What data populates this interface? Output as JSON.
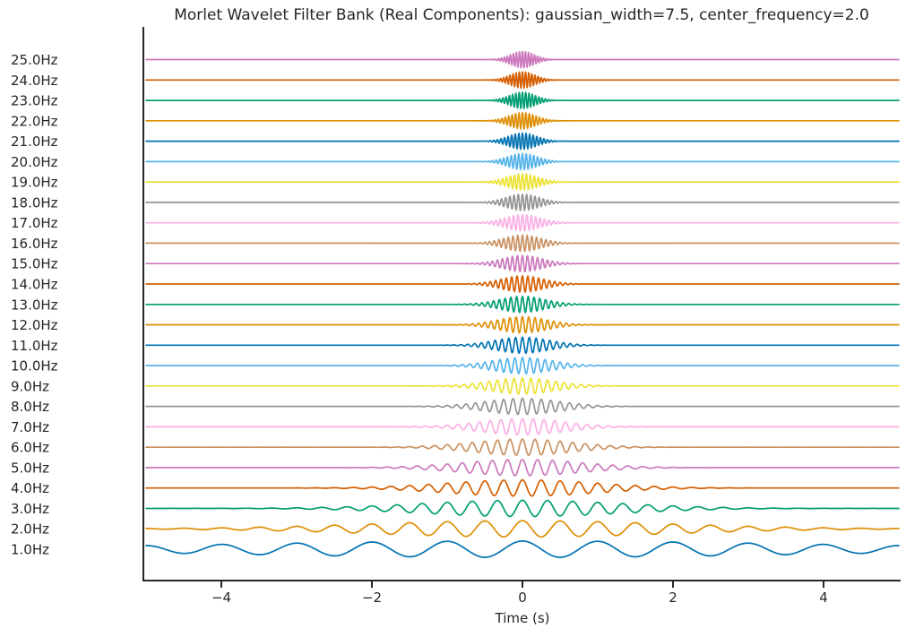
{
  "chart_data": {
    "type": "line",
    "title": "Morlet Wavelet Filter Bank (Real Components): gaussian_width=7.5, center_frequency=2.0",
    "xlabel": "Time (s)",
    "x_range": [
      -5,
      5
    ],
    "x_ticks": [
      {
        "value": -4,
        "label": "−4"
      },
      {
        "value": -2,
        "label": "−2"
      },
      {
        "value": 0,
        "label": "0"
      },
      {
        "value": 2,
        "label": "2"
      },
      {
        "value": 4,
        "label": "4"
      }
    ],
    "grid": false,
    "legend_position": "left-row-labels",
    "gaussian_width": 7.5,
    "center_frequency": 2.0,
    "wavelet_model": "y(t) = cos(2π·f·t) · exp(−(f·t)² / (2·σ²)) stacked per frequency row",
    "sigma_ft": 3.9,
    "amplitude_fraction": 0.4,
    "background_color": "#ffffff",
    "text_color": "#262626",
    "spine_color": "#262626",
    "series": [
      {
        "label": "1.0Hz",
        "frequency": 1.0,
        "color": "#0173B2"
      },
      {
        "label": "2.0Hz",
        "frequency": 2.0,
        "color": "#DE8F05"
      },
      {
        "label": "3.0Hz",
        "frequency": 3.0,
        "color": "#029E73"
      },
      {
        "label": "4.0Hz",
        "frequency": 4.0,
        "color": "#D55E00"
      },
      {
        "label": "5.0Hz",
        "frequency": 5.0,
        "color": "#CC78BC"
      },
      {
        "label": "6.0Hz",
        "frequency": 6.0,
        "color": "#CA9161"
      },
      {
        "label": "7.0Hz",
        "frequency": 7.0,
        "color": "#FBAFE4"
      },
      {
        "label": "8.0Hz",
        "frequency": 8.0,
        "color": "#949494"
      },
      {
        "label": "9.0Hz",
        "frequency": 9.0,
        "color": "#ECE133"
      },
      {
        "label": "10.0Hz",
        "frequency": 10.0,
        "color": "#56B4E9"
      },
      {
        "label": "11.0Hz",
        "frequency": 11.0,
        "color": "#0173B2"
      },
      {
        "label": "12.0Hz",
        "frequency": 12.0,
        "color": "#DE8F05"
      },
      {
        "label": "13.0Hz",
        "frequency": 13.0,
        "color": "#029E73"
      },
      {
        "label": "14.0Hz",
        "frequency": 14.0,
        "color": "#D55E00"
      },
      {
        "label": "15.0Hz",
        "frequency": 15.0,
        "color": "#CC78BC"
      },
      {
        "label": "16.0Hz",
        "frequency": 16.0,
        "color": "#CA9161"
      },
      {
        "label": "17.0Hz",
        "frequency": 17.0,
        "color": "#FBAFE4"
      },
      {
        "label": "18.0Hz",
        "frequency": 18.0,
        "color": "#949494"
      },
      {
        "label": "19.0Hz",
        "frequency": 19.0,
        "color": "#ECE133"
      },
      {
        "label": "20.0Hz",
        "frequency": 20.0,
        "color": "#56B4E9"
      },
      {
        "label": "21.0Hz",
        "frequency": 21.0,
        "color": "#0173B2"
      },
      {
        "label": "22.0Hz",
        "frequency": 22.0,
        "color": "#DE8F05"
      },
      {
        "label": "23.0Hz",
        "frequency": 23.0,
        "color": "#029E73"
      },
      {
        "label": "24.0Hz",
        "frequency": 24.0,
        "color": "#D55E00"
      },
      {
        "label": "25.0Hz",
        "frequency": 25.0,
        "color": "#CC78BC"
      }
    ]
  }
}
